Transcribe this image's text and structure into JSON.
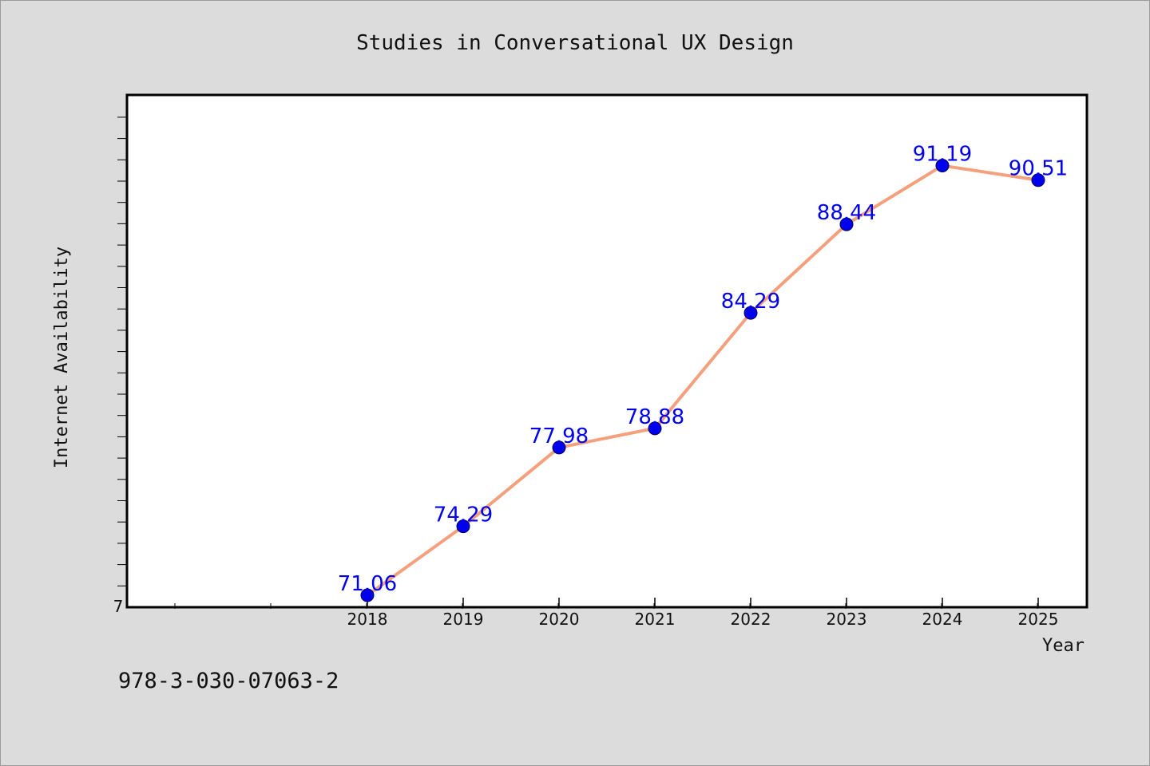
{
  "chart_data": {
    "type": "line",
    "title": "Studies in Conversational UX Design",
    "xlabel": "Year",
    "ylabel": "Internet Availability",
    "categories": [
      "2018",
      "2019",
      "2020",
      "2021",
      "2022",
      "2023",
      "2024",
      "2025"
    ],
    "series": [
      {
        "values": [
          71.06,
          74.29,
          77.98,
          78.88,
          84.29,
          88.44,
          91.19,
          90.51
        ],
        "labels": [
          "71.06",
          "74.29",
          "77.98",
          "78.88",
          "84.29",
          "88.44",
          "91.19",
          "90.51"
        ]
      }
    ],
    "y_tick_label": "7",
    "ylim": [
      70.5,
      94.5
    ],
    "grid": false,
    "colors": {
      "line": "#f4a07c",
      "marker": "#0000ee",
      "data_label": "#0000ee",
      "plot_background": "#ffffff",
      "figure_background": "#dcdcdc"
    }
  },
  "footer": {
    "isbn": "978-3-030-07063-2"
  }
}
